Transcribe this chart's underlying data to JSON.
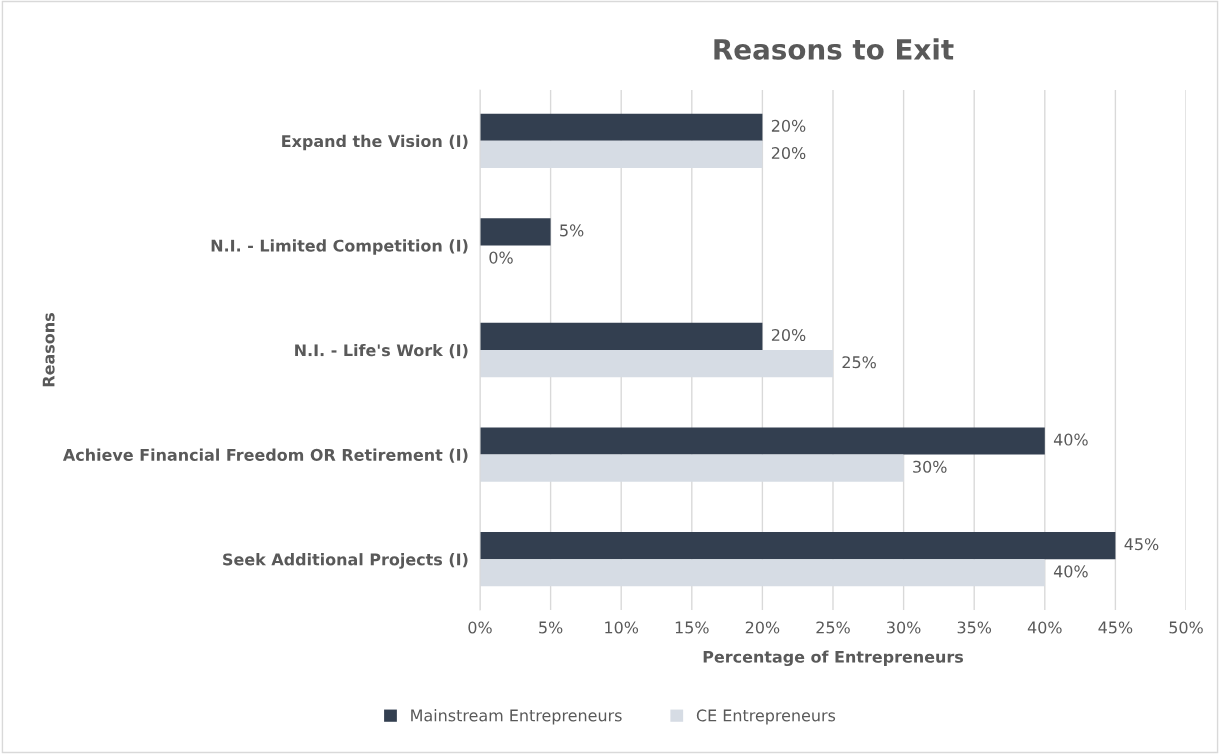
{
  "chart_data": {
    "type": "bar",
    "orientation": "horizontal",
    "title": "Reasons to Exit",
    "xlabel": "Percentage of Entrepreneurs",
    "ylabel": "Reasons",
    "categories": [
      "Expand the Vision (I)",
      "N.I. - Limited Competition (I)",
      "N.I. - Life's Work (I)",
      "Achieve Financial Freedom OR Retirement (I)",
      "Seek Additional Projects (I)"
    ],
    "series": [
      {
        "name": "Mainstream Entrepreneurs",
        "color": "#333f50",
        "values": [
          20,
          5,
          20,
          40,
          45
        ],
        "value_labels": [
          "20%",
          "5%",
          "20%",
          "40%",
          "45%"
        ]
      },
      {
        "name": "CE Entrepreneurs",
        "color": "#d6dce4",
        "values": [
          20,
          0,
          25,
          30,
          40
        ],
        "value_labels": [
          "20%",
          "0%",
          "25%",
          "30%",
          "40%"
        ]
      }
    ],
    "xlim": [
      0,
      50
    ],
    "xticks": [
      {
        "value": 0,
        "label": "0%"
      },
      {
        "value": 5,
        "label": "5%"
      },
      {
        "value": 10,
        "label": "10%"
      },
      {
        "value": 15,
        "label": "15%"
      },
      {
        "value": 20,
        "label": "20%"
      },
      {
        "value": 25,
        "label": "25%"
      },
      {
        "value": 30,
        "label": "30%"
      },
      {
        "value": 35,
        "label": "35%"
      },
      {
        "value": 40,
        "label": "40%"
      },
      {
        "value": 45,
        "label": "45%"
      },
      {
        "value": 50,
        "label": "50%"
      }
    ],
    "grid": "x",
    "legend": "bottom"
  }
}
